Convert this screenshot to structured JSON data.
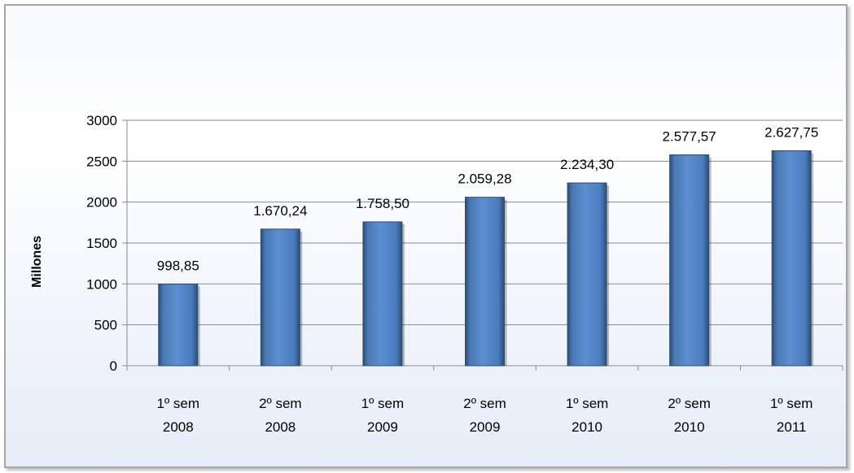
{
  "chart_data": {
    "type": "bar",
    "title": "",
    "xlabel": "",
    "ylabel": "Millones",
    "ylim": [
      0,
      3000
    ],
    "yticks": [
      0,
      500,
      1000,
      1500,
      2000,
      2500,
      3000
    ],
    "grid": true,
    "categories": [
      [
        "1º sem",
        "2008"
      ],
      [
        "2º sem",
        "2008"
      ],
      [
        "1º sem",
        "2009"
      ],
      [
        "2º sem",
        "2009"
      ],
      [
        "1º sem",
        "2010"
      ],
      [
        "2º sem",
        "2010"
      ],
      [
        "1º sem",
        "2011"
      ]
    ],
    "values": [
      998.85,
      1670.24,
      1758.5,
      2059.28,
      2234.3,
      2577.57,
      2627.75
    ],
    "data_labels": [
      "998,85",
      "1.670,24",
      "1.758,50",
      "2.059,28",
      "2.234,30",
      "2.577,57",
      "2.627,75"
    ],
    "bar_color": "#4f81bd"
  }
}
